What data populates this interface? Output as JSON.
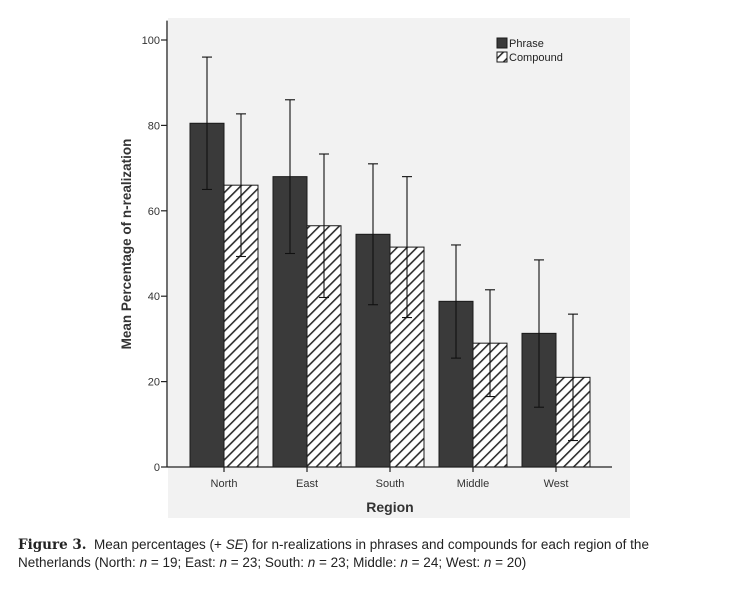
{
  "chart_data": {
    "type": "bar",
    "categories": [
      "North",
      "East",
      "South",
      "Middle",
      "West"
    ],
    "series": [
      {
        "name": "Phrase",
        "values": [
          80.5,
          68.0,
          54.5,
          38.8,
          31.3
        ],
        "se_upper": [
          96.0,
          86.0,
          71.0,
          52.0,
          48.5
        ],
        "se_lower": [
          65.0,
          50.0,
          38.0,
          25.5,
          14.0
        ],
        "color": "#3a3a3a",
        "pattern": "solid"
      },
      {
        "name": "Compound",
        "values": [
          66.0,
          56.5,
          51.5,
          29.0,
          21.0
        ],
        "se_upper": [
          82.7,
          73.3,
          68.0,
          41.5,
          35.8
        ],
        "se_lower": [
          49.3,
          39.7,
          35.0,
          16.5,
          6.2
        ],
        "color": "#ffffff",
        "pattern": "hatched"
      }
    ],
    "xlabel": "Region",
    "ylabel": "Mean Percentage of n-realization",
    "ylim": [
      0,
      105
    ],
    "yticks": [
      0,
      20,
      40,
      60,
      80,
      100
    ],
    "grid": false,
    "legend_position": "top-right",
    "background_color": "#f2f2f2"
  },
  "caption": {
    "label": "Figure 3.",
    "p1": "Mean percentages (+ ",
    "se": "SE",
    "p2": ") for n-realizations in phrases and compounds for each region of the Netherlands (North: ",
    "n": "n",
    "p3": " = 19; East: ",
    "p4": " = 23; South: ",
    "p5": " = 23; Middle: ",
    "p6": " = 24; West: ",
    "p7": " = 20)"
  }
}
